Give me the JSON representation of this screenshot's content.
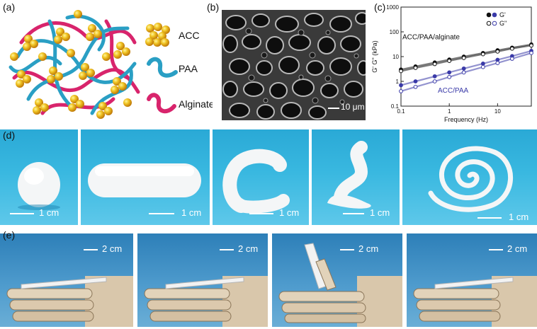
{
  "panels": {
    "a": {
      "label": "(a)",
      "legend": [
        {
          "name": "ACC",
          "icon": "acc-cluster-icon"
        },
        {
          "name": "PAA",
          "icon": "paa-chain-icon"
        },
        {
          "name": "Alginate",
          "icon": "alginate-chain-icon"
        }
      ],
      "colors": {
        "acc": "#e8c21e",
        "acc_dark": "#c98a10",
        "paa": "#2a9fc4",
        "alginate": "#d8246c"
      }
    },
    "b": {
      "label": "(b)",
      "scale": "10 μm"
    },
    "c": {
      "label": "(c)"
    },
    "d": {
      "label": "(d)",
      "scales": [
        "1 cm",
        "1 cm",
        "1 cm",
        "1 cm",
        "1 cm"
      ]
    },
    "e": {
      "label": "(e)",
      "scales": [
        "2 cm",
        "2 cm",
        "2 cm",
        "2 cm"
      ]
    }
  },
  "chart_data": {
    "type": "scatter",
    "title": "",
    "xlabel": "Frequency (Hz)",
    "ylabel": "G' G\" (kPa)",
    "x_scale": "log",
    "y_scale": "log",
    "xlim": [
      0.1,
      50
    ],
    "ylim": [
      0.1,
      1000
    ],
    "x_ticks": [
      "0.1",
      "1",
      "10"
    ],
    "y_ticks": [
      "0.1",
      "1",
      "10",
      "100",
      "1000"
    ],
    "legend_position": "top-right",
    "legend": [
      {
        "label": "G'",
        "marker": "filled"
      },
      {
        "label": "G\"",
        "marker": "open"
      }
    ],
    "annotations": [
      {
        "text": "ACC/PAA/alginate",
        "color": "#111111"
      },
      {
        "text": "ACC/PAA",
        "color": "#3a3aa8"
      }
    ],
    "series": [
      {
        "group": "ACC/PAA/alginate",
        "modulus": "G'",
        "color": "#111111",
        "x": [
          0.1,
          0.2,
          0.5,
          1,
          2,
          5,
          10,
          20,
          50
        ],
        "y": [
          3.0,
          4.0,
          5.8,
          7.6,
          10.0,
          14.0,
          18.0,
          23.0,
          31.0
        ]
      },
      {
        "group": "ACC/PAA/alginate",
        "modulus": "G\"",
        "color": "#111111",
        "x": [
          0.1,
          0.2,
          0.5,
          1,
          2,
          5,
          10,
          20,
          50
        ],
        "y": [
          2.6,
          3.5,
          5.0,
          6.7,
          8.8,
          12.5,
          16.0,
          21.0,
          28.0
        ]
      },
      {
        "group": "ACC/PAA",
        "modulus": "G'",
        "color": "#3a3aa8",
        "x": [
          0.1,
          0.2,
          0.5,
          1,
          2,
          5,
          10,
          20,
          50
        ],
        "y": [
          0.7,
          1.0,
          1.6,
          2.3,
          3.3,
          5.2,
          7.4,
          10.5,
          17.0
        ]
      },
      {
        "group": "ACC/PAA",
        "modulus": "G\"",
        "color": "#3a3aa8",
        "x": [
          0.1,
          0.2,
          0.5,
          1,
          2,
          5,
          10,
          20,
          50
        ],
        "y": [
          0.4,
          0.6,
          1.0,
          1.5,
          2.3,
          3.8,
          5.5,
          8.2,
          14.0
        ]
      }
    ]
  }
}
